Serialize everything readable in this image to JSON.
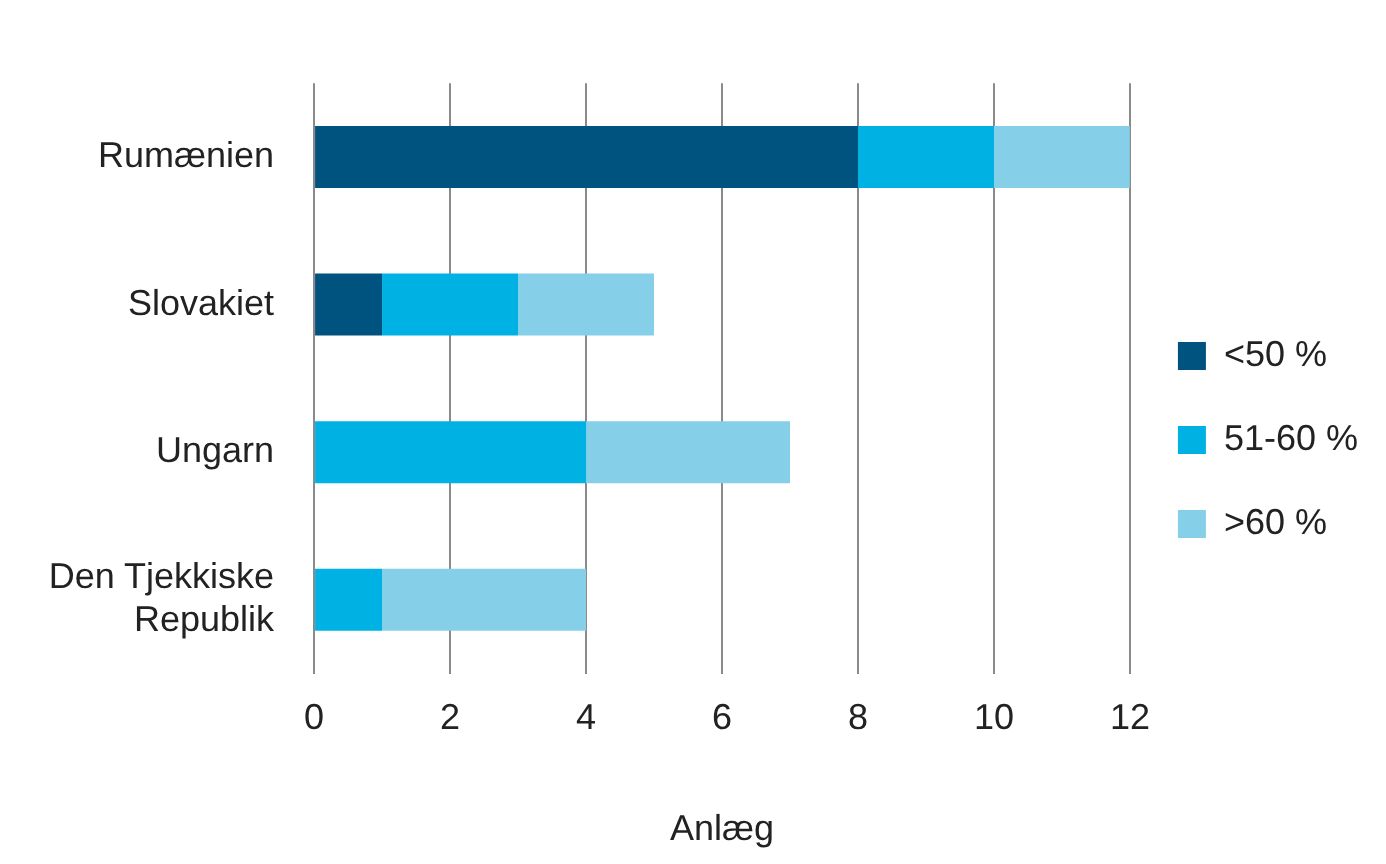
{
  "chart_data": {
    "type": "bar",
    "orientation": "horizontal",
    "stacked": true,
    "xlabel": "Anlæg",
    "categories": [
      "Rumænien",
      "Slovakiet",
      "Ungarn",
      "Den Tjekkiske Republik"
    ],
    "series": [
      {
        "name": "<50 %",
        "color": "#00527f",
        "values": [
          8,
          1,
          0,
          0
        ]
      },
      {
        "name": "51-60 %",
        "color": "#00b2e3",
        "values": [
          2,
          2,
          4,
          1
        ]
      },
      {
        "name": ">60 %",
        "color": "#86cfe9",
        "values": [
          2,
          2,
          3,
          3
        ]
      }
    ],
    "xlim": [
      0,
      12
    ],
    "xticks": [
      0,
      2,
      4,
      6,
      8,
      10,
      12
    ],
    "grid": "x",
    "legend": "right"
  }
}
